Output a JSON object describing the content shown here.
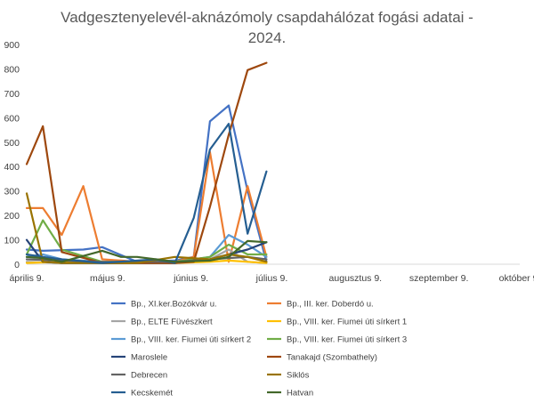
{
  "chart_data": {
    "type": "line",
    "title": "Vadgesztenyelevél-aknázómoly csapdahálózat fogási adatai - 2024.",
    "title_lines": [
      "Vadgesztenyelevél-aknázómoly csapdahálózat fogási adatai -",
      "2024."
    ],
    "xlabel": "",
    "ylabel": "",
    "ylim": [
      0,
      900
    ],
    "yticks": [
      0,
      100,
      200,
      300,
      400,
      500,
      600,
      700,
      800,
      900
    ],
    "xlim": [
      "2024-04-09",
      "2024-10-09"
    ],
    "xticks": [
      "április 9.",
      "május 9.",
      "június 9.",
      "július 9.",
      "augusztus 9.",
      "szeptember 9.",
      "október 9."
    ],
    "grid": "none",
    "legend": "bottom",
    "series": [
      {
        "name": "Bp., XI.ker.Bozókvár u.",
        "color": "#4472C4",
        "x": [
          "2024-04-09",
          "2024-04-15",
          "2024-04-30",
          "2024-05-07",
          "2024-05-20",
          "2024-06-03",
          "2024-06-10",
          "2024-06-16",
          "2024-06-23",
          "2024-06-30",
          "2024-07-07"
        ],
        "y": [
          60,
          55,
          60,
          70,
          10,
          15,
          30,
          585,
          650,
          300,
          10
        ]
      },
      {
        "name": "Bp., III. ker. Doberdó u.",
        "color": "#ED7D31",
        "x": [
          "2024-04-09",
          "2024-04-15",
          "2024-04-22",
          "2024-04-30",
          "2024-05-07",
          "2024-05-14",
          "2024-05-20",
          "2024-06-03",
          "2024-06-10",
          "2024-06-16",
          "2024-06-23",
          "2024-06-30",
          "2024-07-07"
        ],
        "y": [
          230,
          230,
          120,
          320,
          20,
          15,
          10,
          10,
          30,
          460,
          10,
          320,
          30
        ]
      },
      {
        "name": "Bp., ELTE Füvészkert",
        "color": "#A5A5A5",
        "x": [
          "2024-04-09",
          "2024-04-22",
          "2024-05-07",
          "2024-06-03",
          "2024-06-16",
          "2024-06-23",
          "2024-06-30",
          "2024-07-07"
        ],
        "y": [
          10,
          5,
          5,
          5,
          20,
          60,
          10,
          5
        ]
      },
      {
        "name": "Bp., VIII. ker. Fiumei úti sírkert 1",
        "color": "#FFC000",
        "x": [
          "2024-04-09",
          "2024-04-22",
          "2024-05-07",
          "2024-06-03",
          "2024-06-16",
          "2024-06-23",
          "2024-06-30",
          "2024-07-07"
        ],
        "y": [
          5,
          10,
          5,
          5,
          10,
          15,
          10,
          5
        ]
      },
      {
        "name": "Bp., VIII. ker. Fiumei úti sírkert 2",
        "color": "#5B9BD5",
        "x": [
          "2024-04-09",
          "2024-04-15",
          "2024-04-22",
          "2024-05-07",
          "2024-06-03",
          "2024-06-10",
          "2024-06-16",
          "2024-06-23",
          "2024-06-30",
          "2024-07-07"
        ],
        "y": [
          30,
          40,
          20,
          10,
          10,
          20,
          30,
          120,
          80,
          30
        ]
      },
      {
        "name": "Bp., VIII. ker. Fiumei úti sírkert 3",
        "color": "#70AD47",
        "x": [
          "2024-04-09",
          "2024-04-15",
          "2024-04-22",
          "2024-05-07",
          "2024-06-03",
          "2024-06-16",
          "2024-06-23",
          "2024-06-30",
          "2024-07-07"
        ],
        "y": [
          40,
          180,
          60,
          10,
          10,
          30,
          80,
          40,
          40
        ]
      },
      {
        "name": "Maroslele",
        "color": "#264478",
        "x": [
          "2024-04-09",
          "2024-04-15",
          "2024-04-22",
          "2024-05-07",
          "2024-06-03",
          "2024-06-16",
          "2024-06-23",
          "2024-06-30",
          "2024-07-07"
        ],
        "y": [
          100,
          10,
          5,
          5,
          5,
          20,
          40,
          60,
          90
        ]
      },
      {
        "name": "Tanakajd (Szombathely)",
        "color": "#9E480E",
        "x": [
          "2024-04-09",
          "2024-04-15",
          "2024-04-22",
          "2024-05-07",
          "2024-06-03",
          "2024-06-10",
          "2024-06-16",
          "2024-06-23",
          "2024-06-30",
          "2024-07-07"
        ],
        "y": [
          410,
          565,
          50,
          5,
          5,
          10,
          235,
          530,
          795,
          825
        ]
      },
      {
        "name": "Debrecen",
        "color": "#636363",
        "x": [
          "2024-04-09",
          "2024-04-22",
          "2024-05-07",
          "2024-06-03",
          "2024-06-16",
          "2024-06-23",
          "2024-06-30",
          "2024-07-07"
        ],
        "y": [
          20,
          15,
          10,
          10,
          20,
          25,
          30,
          20
        ]
      },
      {
        "name": "Siklós",
        "color": "#997300",
        "x": [
          "2024-04-09",
          "2024-04-15",
          "2024-04-22",
          "2024-05-07",
          "2024-05-20",
          "2024-06-03",
          "2024-06-16",
          "2024-06-23",
          "2024-06-30",
          "2024-07-07"
        ],
        "y": [
          290,
          10,
          5,
          5,
          5,
          30,
          20,
          40,
          30,
          10
        ]
      },
      {
        "name": "Kecskemét",
        "color": "#255E91",
        "x": [
          "2024-04-09",
          "2024-04-15",
          "2024-04-22",
          "2024-05-07",
          "2024-05-27",
          "2024-06-03",
          "2024-06-10",
          "2024-06-16",
          "2024-06-23",
          "2024-06-30",
          "2024-07-07"
        ],
        "y": [
          40,
          30,
          20,
          5,
          20,
          5,
          190,
          470,
          575,
          125,
          380
        ]
      },
      {
        "name": "Hatvan",
        "color": "#43682B",
        "x": [
          "2024-04-09",
          "2024-04-15",
          "2024-04-22",
          "2024-05-07",
          "2024-05-14",
          "2024-05-20",
          "2024-05-27",
          "2024-06-03",
          "2024-06-16",
          "2024-06-23",
          "2024-06-30",
          "2024-07-07"
        ],
        "y": [
          30,
          25,
          10,
          55,
          30,
          30,
          20,
          10,
          15,
          30,
          95,
          90
        ]
      }
    ]
  }
}
